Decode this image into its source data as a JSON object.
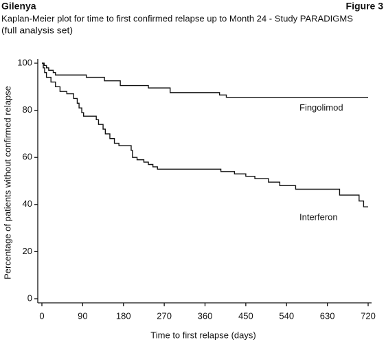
{
  "chart_data": {
    "type": "step",
    "brand": "Gilenya",
    "figure_label": "Figure 3",
    "title": "Kaplan-Meier plot for time to first confirmed relapse up to Month 24 - Study PARADIGMS",
    "subtitle": "(full analysis set)",
    "x_label": "Time to first relapse (days)",
    "y_label": "Percentage of patients without confirmed relapse",
    "xlim": [
      0,
      720
    ],
    "ylim": [
      0,
      100
    ],
    "xticks": [
      0,
      90,
      180,
      270,
      360,
      450,
      540,
      630,
      720
    ],
    "yticks": [
      0,
      20,
      40,
      60,
      80,
      100
    ],
    "series": [
      {
        "name": "Fingolimod",
        "color": "#111111",
        "x": [
          0,
          5,
          10,
          15,
          25,
          30,
          98,
          138,
          173,
          235,
          283,
          392,
          407,
          720
        ],
        "values": [
          100,
          99,
          98,
          97,
          96,
          95,
          94,
          92.5,
          90.5,
          89.5,
          87.5,
          86.5,
          85.5,
          85.5
        ]
      },
      {
        "name": "Interferon",
        "color": "#111111",
        "x": [
          0,
          3,
          6,
          10,
          20,
          30,
          40,
          55,
          70,
          78,
          82,
          88,
          92,
          120,
          125,
          135,
          140,
          150,
          160,
          170,
          197,
          200,
          210,
          225,
          235,
          245,
          255,
          395,
          425,
          450,
          470,
          500,
          525,
          560,
          657,
          700,
          710,
          720
        ],
        "values": [
          100,
          98,
          96,
          94,
          92,
          90,
          88,
          87,
          85,
          83,
          81,
          79,
          77.5,
          76,
          74,
          72,
          70,
          68,
          66,
          65,
          63,
          60,
          59,
          58,
          57,
          56,
          55,
          54,
          53,
          52,
          51,
          49.5,
          48,
          46.5,
          44,
          41.5,
          39,
          39
        ]
      }
    ]
  }
}
